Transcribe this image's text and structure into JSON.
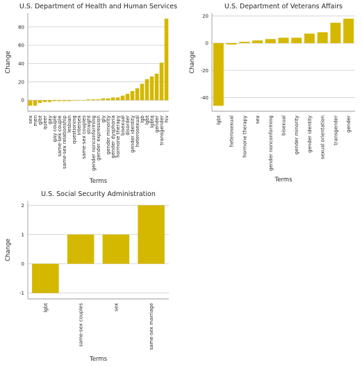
{
  "accent_color": "#d4b800",
  "chart_data": [
    {
      "type": "bar",
      "title": "U.S. Department of Health and Human Services",
      "xlabel": "Terms",
      "ylabel": "Change",
      "ylim": [
        -12,
        95
      ],
      "yticks": [
        0,
        20,
        40,
        60,
        80
      ],
      "grid": "y",
      "categories": [
        "sex",
        "men",
        "glbt",
        "queer",
        "gay",
        "gay couple",
        "same-sex couple",
        "same-sex relationship",
        "lesbian",
        "questioning",
        "intersex",
        "same-sex couples",
        "straight",
        "gender nonconforming",
        "gender expression",
        "gly",
        "gender minority",
        "gender dysphoria",
        "hormone therapy",
        "bisexual",
        "disorder",
        "gender identity",
        "heterosexual",
        "lgb",
        "lgbt",
        "lgbtq",
        "gender",
        "transgender",
        "hiv"
      ],
      "values": [
        -6,
        -6,
        -3,
        -2,
        -2,
        -1,
        -1,
        -1,
        -1,
        0,
        0,
        0,
        1,
        1,
        1,
        2,
        2,
        3,
        3,
        5,
        7,
        10,
        13,
        18,
        23,
        26,
        29,
        41,
        89
      ]
    },
    {
      "type": "bar",
      "title": "U.S. Department of Veterans Affairs",
      "xlabel": "Terms",
      "ylabel": "Change",
      "ylim": [
        -50,
        22
      ],
      "yticks": [
        -40,
        -20,
        0,
        20
      ],
      "grid": "y",
      "categories": [
        "lgbt",
        "heterosexual",
        "hormone therapy",
        "sex",
        "gender nonconforming",
        "bisexual",
        "gender minority",
        "gender identity",
        "sexual orientation",
        "transgender",
        "gender"
      ],
      "values": [
        -46,
        -1,
        1,
        2,
        3,
        4,
        4,
        7,
        8,
        15,
        18
      ]
    },
    {
      "type": "bar",
      "title": "U.S. Social Security Administration",
      "xlabel": "Terms",
      "ylabel": "Change",
      "ylim": [
        -1.2,
        2.15
      ],
      "yticks": [
        -1,
        0,
        1,
        2
      ],
      "grid": "y",
      "categories": [
        "lgbt",
        "same-sex couples",
        "sex",
        "same-sex marriage"
      ],
      "values": [
        -1,
        1,
        1,
        2
      ]
    }
  ]
}
